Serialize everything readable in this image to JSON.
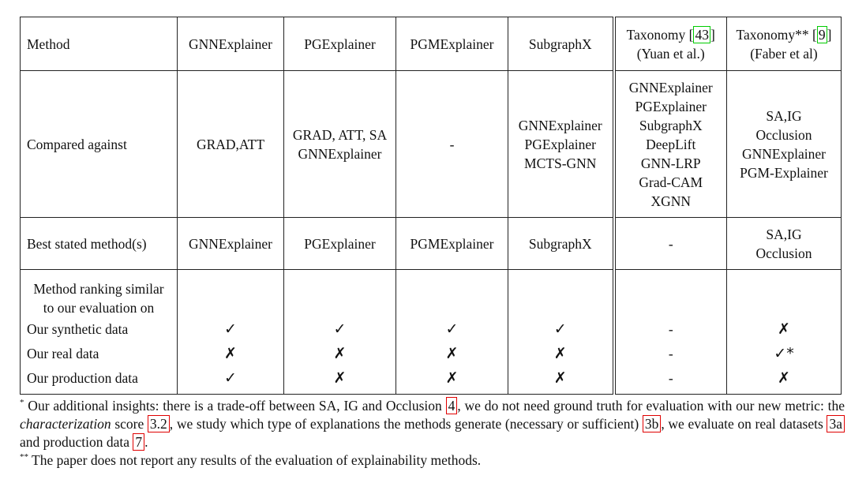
{
  "header": {
    "method": "Method",
    "cols": [
      "GNNExplainer",
      "PGExplainer",
      "PGMExplainer",
      "SubgraphX"
    ],
    "taxonomy1": {
      "label": "Taxonomy",
      "ref": "43",
      "authors": "(Yuan et al.)"
    },
    "taxonomy2": {
      "label": "Taxonomy**",
      "ref": "9",
      "authors": "(Faber et al)"
    }
  },
  "compared": {
    "label": "Compared against",
    "gnn": [
      "GRAD,ATT"
    ],
    "pge": [
      "GRAD, ATT, SA",
      "GNNExplainer"
    ],
    "pgm": [
      "-"
    ],
    "sub": [
      "GNNExplainer",
      "PGExplainer",
      "MCTS-GNN"
    ],
    "tax1": [
      "GNNExplainer",
      "PGExplainer",
      "SubgraphX",
      "DeepLift",
      "GNN-LRP",
      "Grad-CAM",
      "XGNN"
    ],
    "tax2": [
      "SA,IG",
      "Occlusion",
      "GNNExplainer",
      "PGM-Explainer"
    ]
  },
  "best": {
    "label": "Best stated method(s)",
    "values": [
      "GNNExplainer",
      "PGExplainer",
      "PGMExplainer",
      "SubgraphX",
      "-"
    ],
    "tax2": [
      "SA,IG",
      "Occlusion"
    ]
  },
  "ranking": {
    "header": [
      "Method ranking similar",
      "to our evaluation on"
    ],
    "rows": [
      {
        "label": "Our synthetic data",
        "values": [
          "✓",
          "✓",
          "✓",
          "✓",
          "-",
          "✗"
        ]
      },
      {
        "label": "Our real data",
        "values": [
          "✗",
          "✗",
          "✗",
          "✗",
          "-",
          "✓*"
        ]
      },
      {
        "label": "Our production data",
        "values": [
          "✓",
          "✗",
          "✗",
          "✗",
          "-",
          "✗"
        ]
      }
    ]
  },
  "notes": {
    "note1_marker": "*",
    "note1": {
      "t1": " Our additional insights: there is a trade-off between SA, IG and Occlusion ",
      "r1": "4",
      "t2": ", we do not need ground truth for evaluation with our new metric: the ",
      "em": "characterization",
      "t3": " score ",
      "r2": "3.2",
      "t4": ", we study which type of explanations the methods generate (necessary or sufficient) ",
      "r3": "3b",
      "t5": ", we evaluate on real datasets ",
      "r4": "3a",
      "t6": " and production data ",
      "r5": "7",
      "t7": "."
    },
    "note2_marker": "**",
    "note2": " The paper does not report any results of the evaluation of explainability methods."
  }
}
